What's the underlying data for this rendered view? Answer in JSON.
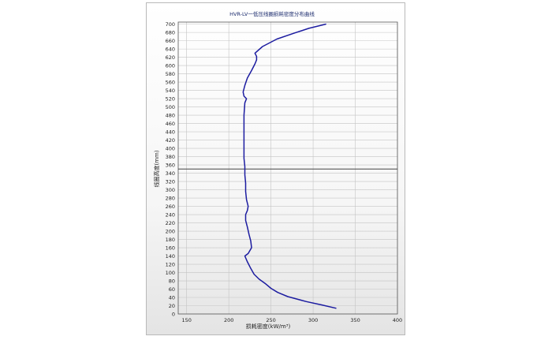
{
  "chart_data": {
    "type": "line",
    "title": "HVR-LV一低压线圈损耗密度分布曲线",
    "xlabel": "损耗密度(kW/m³)",
    "ylabel": "线圈高度(mm)",
    "xlim": [
      140,
      400
    ],
    "ylim": [
      0,
      705
    ],
    "x_ticks": [
      150,
      200,
      250,
      300,
      350,
      400
    ],
    "y_ticks": [
      0,
      20,
      40,
      60,
      80,
      100,
      120,
      140,
      160,
      180,
      200,
      220,
      240,
      260,
      280,
      300,
      320,
      340,
      360,
      380,
      400,
      420,
      440,
      460,
      480,
      500,
      520,
      540,
      560,
      580,
      600,
      620,
      640,
      660,
      680,
      700
    ],
    "grid": true,
    "reference_line_y": 350,
    "line_color": "#1c1ca0",
    "series": [
      {
        "points": [
          [
            327,
            14
          ],
          [
            310,
            22
          ],
          [
            292,
            30
          ],
          [
            270,
            42
          ],
          [
            258,
            52
          ],
          [
            250,
            62
          ],
          [
            243,
            74
          ],
          [
            236,
            84
          ],
          [
            230,
            96
          ],
          [
            226,
            110
          ],
          [
            222,
            126
          ],
          [
            219,
            140
          ],
          [
            223,
            146
          ],
          [
            227,
            160
          ],
          [
            226,
            176
          ],
          [
            224,
            192
          ],
          [
            222,
            210
          ],
          [
            220,
            226
          ],
          [
            220,
            240
          ],
          [
            222,
            250
          ],
          [
            223,
            260
          ],
          [
            221,
            276
          ],
          [
            220,
            296
          ],
          [
            220,
            316
          ],
          [
            219,
            336
          ],
          [
            219,
            356
          ],
          [
            218,
            376
          ],
          [
            218,
            400
          ],
          [
            218,
            440
          ],
          [
            218,
            480
          ],
          [
            219,
            510
          ],
          [
            221,
            520
          ],
          [
            218,
            526
          ],
          [
            217,
            536
          ],
          [
            219,
            552
          ],
          [
            222,
            570
          ],
          [
            227,
            588
          ],
          [
            231,
            604
          ],
          [
            233,
            614
          ],
          [
            233,
            622
          ],
          [
            231,
            630
          ],
          [
            240,
            646
          ],
          [
            257,
            664
          ],
          [
            277,
            678
          ],
          [
            295,
            690
          ],
          [
            315,
            700
          ]
        ]
      }
    ]
  }
}
